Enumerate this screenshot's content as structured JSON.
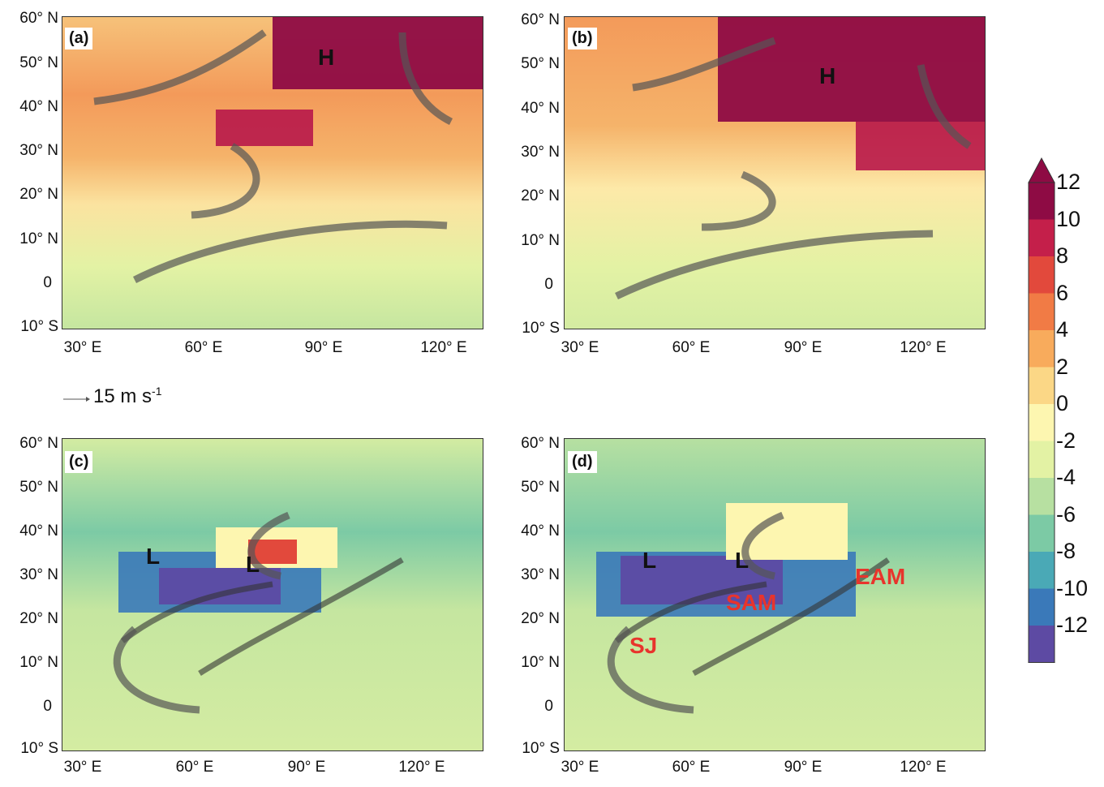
{
  "panels": [
    {
      "id": "a",
      "label": "(a)",
      "highs": [
        "H"
      ],
      "lows": []
    },
    {
      "id": "b",
      "label": "(b)",
      "highs": [
        "H"
      ],
      "lows": []
    },
    {
      "id": "c",
      "label": "(c)",
      "highs": [],
      "lows": [
        "L",
        "L"
      ]
    },
    {
      "id": "d",
      "label": "(d)",
      "highs": [],
      "lows": [
        "L",
        "L"
      ],
      "annotations": [
        "SJ",
        "SAM",
        "EAM"
      ]
    }
  ],
  "lat_ticks": [
    "60° N",
    "50° N",
    "40° N",
    "30° N",
    "20° N",
    "10° N",
    "0",
    "10° S"
  ],
  "lon_ticks": [
    "30° E",
    "60° E",
    "90° E",
    "120° E"
  ],
  "reference_vector": {
    "value": "15",
    "unit": "m s",
    "exponent": "-1"
  },
  "colorbar": {
    "labels": [
      "12",
      "10",
      "8",
      "6",
      "4",
      "2",
      "0",
      "-2",
      "-4",
      "-6",
      "-8",
      "-10",
      "-12"
    ],
    "colors": [
      "#8e0b44",
      "#c41f4a",
      "#e2493c",
      "#f17b45",
      "#f8ab5c",
      "#fbd786",
      "#fdf6b0",
      "#e3f2a4",
      "#b7e0a1",
      "#7ccaa5",
      "#4aa9b6",
      "#3a79b9",
      "#5d4aa3"
    ]
  }
}
